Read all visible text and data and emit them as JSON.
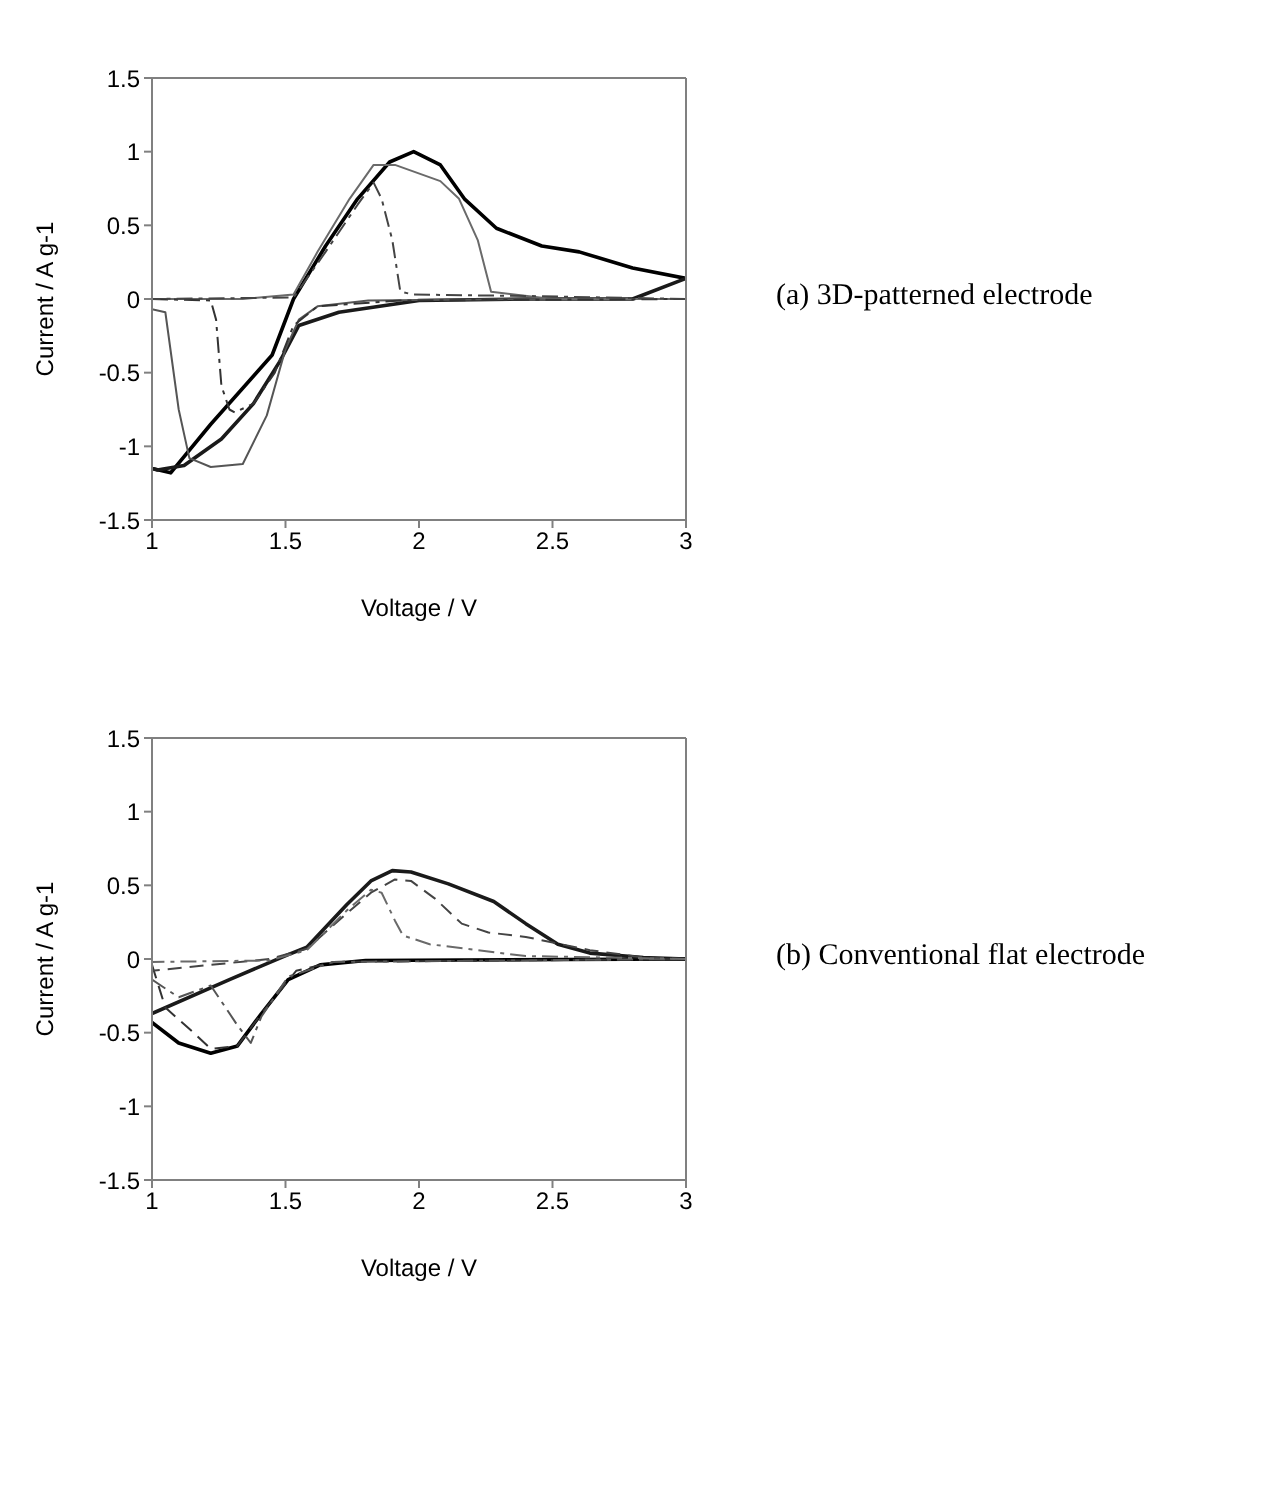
{
  "chart_data": [
    {
      "type": "line",
      "annotations": [
        "(a) 3D-patterned electrode"
      ],
      "xlabel": "Voltage / V",
      "ylabel": "Current / A g-1",
      "xlim": [
        1,
        3
      ],
      "ylim": [
        -1.5,
        1.5
      ],
      "xticks": [
        1,
        1.5,
        2,
        2.5,
        3
      ],
      "yticks": [
        -1.5,
        -1,
        -0.5,
        0,
        0.5,
        1,
        1.5
      ],
      "grid": false,
      "legend": false,
      "marker": "none",
      "series": [
        {
          "color": "#000000",
          "line_style": "solid",
          "x": [
            1,
            1.07,
            1.22,
            1.45,
            1.53,
            1.65,
            1.77,
            1.89,
            1.98,
            2.08,
            2.17,
            2.29,
            2.46,
            2.6,
            2.8,
            3
          ],
          "values": [
            -1.15,
            -1.18,
            -0.85,
            -0.38,
            0,
            0.36,
            0.68,
            0.93,
            1,
            0.91,
            0.68,
            0.48,
            0.36,
            0.32,
            0.21,
            0.14
          ]
        },
        {
          "color": "#1a1a1a",
          "line_style": "solid",
          "x": [
            3,
            2.8,
            2.4,
            2,
            1.7,
            1.55,
            1.48,
            1.38,
            1.26,
            1.12,
            1.02,
            1
          ],
          "values": [
            0.14,
            0,
            0,
            -0.01,
            -0.09,
            -0.18,
            -0.42,
            -0.71,
            -0.95,
            -1.13,
            -1.16,
            -1.15
          ]
        },
        {
          "color": "#555555",
          "line_style": "solid",
          "x": [
            1,
            1.05,
            1.1,
            1.14,
            1.22,
            1.34,
            1.43,
            1.5,
            1.55,
            1.62,
            1.81,
            2.5,
            3
          ],
          "values": [
            -0.07,
            -0.09,
            -0.75,
            -1.08,
            -1.14,
            -1.12,
            -0.79,
            -0.34,
            -0.14,
            -0.05,
            -0.01,
            0,
            0
          ]
        },
        {
          "color": "#6a6a6a",
          "line_style": "solid",
          "x": [
            3,
            2.5,
            2.27,
            2.22,
            2.15,
            2.08,
            1.91,
            1.83,
            1.74,
            1.62,
            1.53,
            1.34,
            1
          ],
          "values": [
            0,
            0,
            0.05,
            0.4,
            0.68,
            0.8,
            0.91,
            0.91,
            0.68,
            0.32,
            0.03,
            0,
            0
          ]
        },
        {
          "color": "#333333",
          "line_style": "dashdot",
          "x": [
            1,
            1.22,
            1.24,
            1.26,
            1.29,
            1.31,
            1.38,
            1.46,
            1.53,
            1.62,
            1.93,
            3
          ],
          "values": [
            0,
            -0.01,
            -0.14,
            -0.59,
            -0.75,
            -0.77,
            -0.71,
            -0.5,
            -0.18,
            -0.05,
            -0.01,
            0
          ]
        },
        {
          "color": "#444444",
          "line_style": "dashdot",
          "x": [
            3,
            2.41,
            1.98,
            1.93,
            1.9,
            1.86,
            1.83,
            1.77,
            1.65,
            1.53,
            1
          ],
          "values": [
            0,
            0.02,
            0.03,
            0.05,
            0.4,
            0.68,
            0.79,
            0.64,
            0.32,
            0.01,
            0
          ]
        }
      ]
    },
    {
      "type": "line",
      "annotations": [
        "(b) Conventional flat electrode"
      ],
      "xlabel": "Voltage / V",
      "ylabel": "Current / A g-1",
      "xlim": [
        1,
        3
      ],
      "ylim": [
        -1.5,
        1.5
      ],
      "xticks": [
        1,
        1.5,
        2,
        2.5,
        3
      ],
      "yticks": [
        -1.5,
        -1,
        -0.5,
        0,
        0.5,
        1,
        1.5
      ],
      "grid": false,
      "legend": false,
      "marker": "none",
      "series": [
        {
          "color": "#000000",
          "line_style": "solid",
          "x": [
            1,
            1.1,
            1.22,
            1.32,
            1.41,
            1.51,
            1.63,
            1.8,
            3
          ],
          "values": [
            -0.43,
            -0.57,
            -0.64,
            -0.59,
            -0.37,
            -0.14,
            -0.04,
            -0.01,
            0
          ]
        },
        {
          "color": "#1a1a1a",
          "line_style": "solid",
          "x": [
            3,
            2.84,
            2.64,
            2.52,
            2.4,
            2.28,
            2.11,
            1.97,
            1.9,
            1.82,
            1.73,
            1.58,
            1.51,
            1.29,
            1
          ],
          "values": [
            0,
            0.01,
            0.04,
            0.1,
            0.24,
            0.39,
            0.51,
            0.59,
            0.6,
            0.53,
            0.37,
            0.08,
            0.03,
            -0.14,
            -0.37
          ]
        },
        {
          "color": "#333333",
          "line_style": "dashed",
          "x": [
            1,
            1.05,
            1.15,
            1.22,
            1.32,
            1.41,
            1.54,
            1.68,
            3
          ],
          "values": [
            -0.04,
            -0.33,
            -0.49,
            -0.61,
            -0.59,
            -0.37,
            -0.08,
            -0.02,
            0
          ]
        },
        {
          "color": "#444444",
          "line_style": "dashed",
          "x": [
            3,
            2.84,
            2.64,
            2.4,
            2.26,
            2.16,
            2.06,
            1.97,
            1.91,
            1.82,
            1.73,
            1.58,
            1.44,
            1
          ],
          "values": [
            0,
            0.01,
            0.06,
            0.15,
            0.18,
            0.24,
            0.41,
            0.53,
            0.54,
            0.45,
            0.31,
            0.07,
            0,
            -0.08
          ]
        },
        {
          "color": "#555555",
          "line_style": "dashdot",
          "x": [
            1,
            1.1,
            1.22,
            1.32,
            1.37,
            1.41,
            1.51,
            1.68,
            3
          ],
          "values": [
            -0.14,
            -0.26,
            -0.18,
            -0.45,
            -0.57,
            -0.39,
            -0.12,
            -0.02,
            0
          ]
        },
        {
          "color": "#6a6a6a",
          "line_style": "dashdot",
          "x": [
            3,
            2.4,
            2.04,
            1.94,
            1.91,
            1.86,
            1.82,
            1.73,
            1.58,
            1.44,
            1,
            1
          ],
          "values": [
            0,
            0.02,
            0.1,
            0.16,
            0.26,
            0.45,
            0.47,
            0.33,
            0.06,
            -0.01,
            -0.02,
            -0.14
          ]
        }
      ]
    }
  ]
}
